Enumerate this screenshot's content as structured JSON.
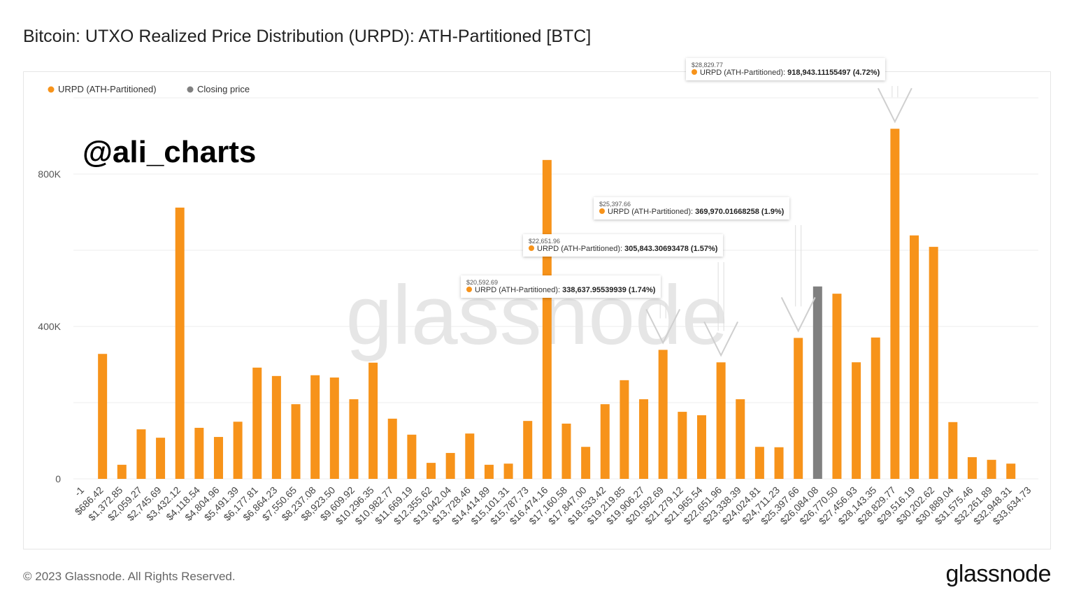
{
  "title": "Bitcoin: UTXO Realized Price Distribution (URPD): ATH-Partitioned [BTC]",
  "watermark_handle": "@ali_charts",
  "watermark_logo": "glassnode",
  "footer": "© 2023 Glassnode. All Rights Reserved.",
  "brand": "glassnode",
  "colors": {
    "urpd": "#f7931a",
    "closing": "#808080",
    "grid": "#eeeeee"
  },
  "chart_data": {
    "type": "bar",
    "title": "Bitcoin: UTXO Realized Price Distribution (URPD): ATH-Partitioned [BTC]",
    "legend": {
      "placement": "top-left",
      "items": [
        {
          "name": "URPD (ATH-Partitioned)",
          "color": "#f7931a"
        },
        {
          "name": "Closing price",
          "color": "#808080"
        }
      ]
    },
    "grid": true,
    "ylim": [
      0,
      1000000
    ],
    "yticks": [
      {
        "value": 0,
        "label": "0"
      },
      {
        "value": 400000,
        "label": "400K"
      },
      {
        "value": 800000,
        "label": "800K"
      }
    ],
    "categories": [
      "-1",
      "$686.42",
      "$1,372.85",
      "$2,059.27",
      "$2,745.69",
      "$3,432.12",
      "$4,118.54",
      "$4,804.96",
      "$5,491.39",
      "$6,177.81",
      "$6,864.23",
      "$7,550.65",
      "$8,237.08",
      "$8,923.50",
      "$9,609.92",
      "$10,296.35",
      "$10,982.77",
      "$11,669.19",
      "$12,355.62",
      "$13,042.04",
      "$13,728.46",
      "$14,414.89",
      "$15,101.31",
      "$15,787.73",
      "$16,474.16",
      "$17,160.58",
      "$17,847.00",
      "$18,533.42",
      "$19,219.85",
      "$19,906.27",
      "$20,592.69",
      "$21,279.12",
      "$21,965.54",
      "$22,651.96",
      "$23,338.39",
      "$24,024.81",
      "$24,711.23",
      "$25,397.66",
      "$26,084.08",
      "$26,770.50",
      "$27,456.93",
      "$28,143.35",
      "$28,829.77",
      "$29,516.19",
      "$30,202.62",
      "$30,889.04",
      "$31,575.46",
      "$32,261.89",
      "$32,948.31",
      "$33,634.73"
    ],
    "values": [
      0,
      328000,
      37000,
      130000,
      108000,
      712000,
      134000,
      110000,
      150000,
      292000,
      270000,
      196000,
      272000,
      266000,
      209000,
      305000,
      158000,
      116000,
      42000,
      68000,
      119000,
      37000,
      40000,
      152000,
      837000,
      145000,
      84000,
      196000,
      259000,
      209000,
      338637.95539939,
      176000,
      167000,
      305843.30693478,
      209000,
      84000,
      83000,
      369970.01668258,
      505000,
      486000,
      306000,
      371000,
      918943.11155497,
      639000,
      609000,
      149000,
      57000,
      50000,
      40000,
      0
    ],
    "closing_price_category": "$26,084.08",
    "tooltips": [
      {
        "category": "$20,592.69",
        "label": "URPD (ATH-Partitioned):",
        "value": "338,637.95539939 (1.74%)"
      },
      {
        "category": "$22,651.96",
        "label": "URPD (ATH-Partitioned):",
        "value": "305,843.30693478 (1.57%)"
      },
      {
        "category": "$25,397.66",
        "label": "URPD (ATH-Partitioned):",
        "value": "369,970.01668258 (1.9%)"
      },
      {
        "category": "$28,829.77",
        "label": "URPD (ATH-Partitioned):",
        "value": "918,943.11155497 (4.72%)"
      }
    ]
  }
}
